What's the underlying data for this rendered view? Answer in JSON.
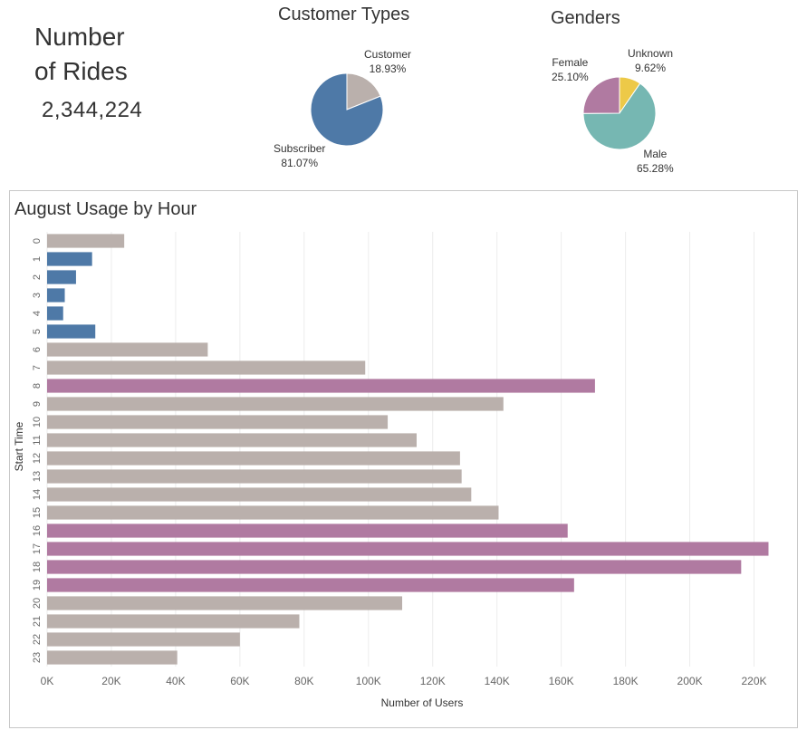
{
  "kpi": {
    "title_line1": "Number",
    "title_line2": "of Rides",
    "value": "2,344,224"
  },
  "customer_types": {
    "title": "Customer Types",
    "slices": [
      {
        "name": "Customer",
        "pct_label": "18.93%",
        "value": 18.93,
        "color": "#bab0ac"
      },
      {
        "name": "Subscriber",
        "pct_label": "81.07%",
        "value": 81.07,
        "color": "#4e79a7"
      }
    ]
  },
  "genders": {
    "title": "Genders",
    "slices": [
      {
        "name": "Unknown",
        "pct_label": "9.62%",
        "value": 9.62,
        "color": "#edc948"
      },
      {
        "name": "Male",
        "pct_label": "65.28%",
        "value": 65.28,
        "color": "#76b7b2"
      },
      {
        "name": "Female",
        "pct_label": "25.10%",
        "value": 25.1,
        "color": "#b07aa1"
      }
    ]
  },
  "chart_data": {
    "type": "bar",
    "orientation": "horizontal",
    "title": "August Usage by Hour",
    "xlabel": "Number of Users",
    "ylabel": "Start Time",
    "xlim": [
      0,
      230000
    ],
    "grid": true,
    "x_ticks": [
      {
        "value": 0,
        "label": "0K"
      },
      {
        "value": 20000,
        "label": "20K"
      },
      {
        "value": 40000,
        "label": "40K"
      },
      {
        "value": 60000,
        "label": "60K"
      },
      {
        "value": 80000,
        "label": "80K"
      },
      {
        "value": 100000,
        "label": "100K"
      },
      {
        "value": 120000,
        "label": "120K"
      },
      {
        "value": 140000,
        "label": "140K"
      },
      {
        "value": 160000,
        "label": "160K"
      },
      {
        "value": 180000,
        "label": "180K"
      },
      {
        "value": 200000,
        "label": "200K"
      },
      {
        "value": 220000,
        "label": "220K"
      }
    ],
    "categories": [
      "0",
      "1",
      "2",
      "3",
      "4",
      "5",
      "6",
      "7",
      "8",
      "9",
      "10",
      "11",
      "12",
      "13",
      "14",
      "15",
      "16",
      "17",
      "18",
      "19",
      "20",
      "21",
      "22",
      "23"
    ],
    "values": [
      24000,
      14000,
      9000,
      5500,
      5000,
      15000,
      50000,
      99000,
      170500,
      142000,
      106000,
      115000,
      128500,
      129000,
      132000,
      140500,
      162000,
      224500,
      216000,
      164000,
      110500,
      78500,
      60000,
      40500
    ],
    "bar_colors": [
      "#bab0ac",
      "#4e79a7",
      "#4e79a7",
      "#4e79a7",
      "#4e79a7",
      "#4e79a7",
      "#bab0ac",
      "#bab0ac",
      "#b07aa1",
      "#bab0ac",
      "#bab0ac",
      "#bab0ac",
      "#bab0ac",
      "#bab0ac",
      "#bab0ac",
      "#bab0ac",
      "#b07aa1",
      "#b07aa1",
      "#b07aa1",
      "#b07aa1",
      "#bab0ac",
      "#bab0ac",
      "#bab0ac",
      "#bab0ac"
    ]
  }
}
